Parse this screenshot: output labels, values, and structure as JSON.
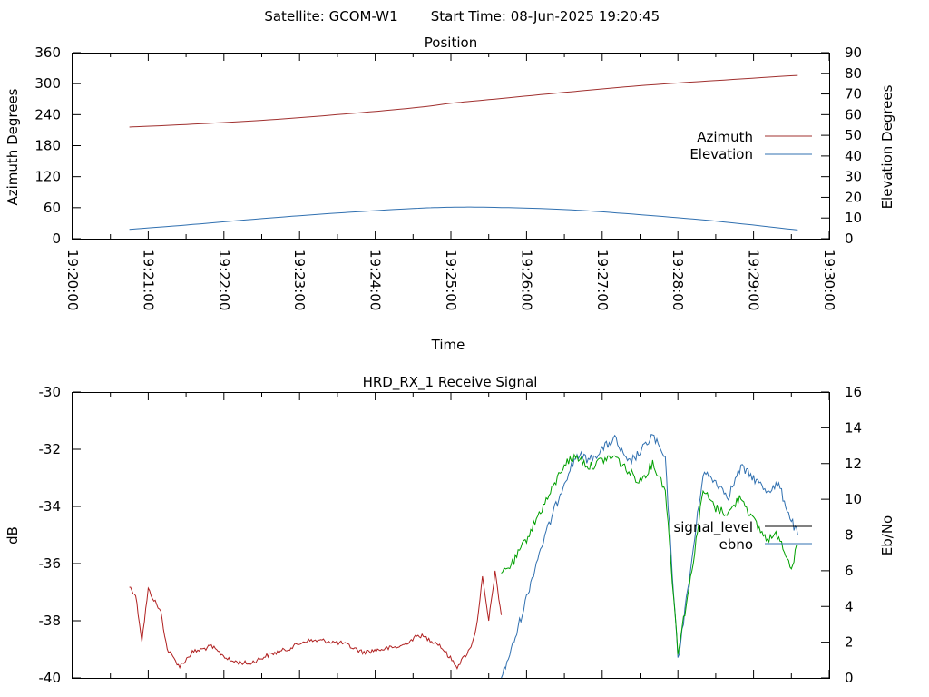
{
  "header": {
    "satellite_text": "Satellite: GCOM-W1",
    "start_time_text": "Start Time: 08-Jun-2025 19:20:45"
  },
  "chart_data": [
    {
      "type": "line",
      "title": "Position",
      "xlabel": "Time",
      "ylabel": "Azimuth Degrees",
      "y2label": "Elevation Degrees",
      "x_ticks": [
        "19:20:00",
        "19:21:00",
        "19:22:00",
        "19:23:00",
        "19:24:00",
        "19:25:00",
        "19:26:00",
        "19:27:00",
        "19:28:00",
        "19:29:00",
        "19:30:00"
      ],
      "x_range": [
        "19:20:00",
        "19:30:00"
      ],
      "ylim": [
        0,
        360
      ],
      "y_ticks": [
        "0",
        "60",
        "120",
        "180",
        "240",
        "300",
        "360"
      ],
      "y2lim": [
        0,
        90
      ],
      "y2_ticks": [
        "0",
        "10",
        "20",
        "30",
        "40",
        "50",
        "60",
        "70",
        "80",
        "90"
      ],
      "legend_position": "right",
      "series": [
        {
          "name": "Azimuth",
          "axis": "left",
          "color": "#a0302f",
          "x": [
            "19:20:45",
            "19:21:30",
            "19:22:30",
            "19:23:30",
            "19:24:30",
            "19:25:00",
            "19:25:30",
            "19:26:30",
            "19:27:30",
            "19:28:30",
            "19:29:35"
          ],
          "values": [
            216,
            221,
            229,
            240,
            253,
            262,
            269,
            283,
            296,
            306,
            316
          ]
        },
        {
          "name": "Elevation",
          "axis": "right",
          "color": "#3070b0",
          "x": [
            "19:20:45",
            "19:21:30",
            "19:22:30",
            "19:23:30",
            "19:24:30",
            "19:25:00",
            "19:25:30",
            "19:26:30",
            "19:27:30",
            "19:28:30",
            "19:29:35"
          ],
          "values": [
            4.5,
            6.6,
            9.7,
            12.4,
            14.6,
            15.2,
            15.2,
            14.1,
            11.6,
            8.5,
            4.2
          ]
        }
      ]
    },
    {
      "type": "line",
      "title": "HRD_RX_1 Receive Signal",
      "ylabel": "dB",
      "y2label": "Eb/No",
      "x_range": [
        "19:20:00",
        "19:30:00"
      ],
      "ylim": [
        -40,
        -30
      ],
      "y_ticks": [
        "-40",
        "-38",
        "-36",
        "-34",
        "-32",
        "-30"
      ],
      "y2lim": [
        0,
        16
      ],
      "y2_ticks": [
        "0",
        "2",
        "4",
        "6",
        "8",
        "10",
        "12",
        "14",
        "16"
      ],
      "legend_position": "right",
      "series": [
        {
          "name": "signal_level",
          "axis": "left",
          "color": "#b02020",
          "x": [
            "19:20:45",
            "19:20:50",
            "19:20:55",
            "19:21:00",
            "19:21:10",
            "19:21:15",
            "19:21:25",
            "19:21:35",
            "19:21:50",
            "19:22:05",
            "19:22:20",
            "19:22:35",
            "19:22:50",
            "19:23:05",
            "19:23:20",
            "19:23:35",
            "19:23:50",
            "19:24:05",
            "19:24:20",
            "19:24:35",
            "19:24:50",
            "19:25:05",
            "19:25:15",
            "19:25:20",
            "19:25:25",
            "19:25:30",
            "19:25:35",
            "19:25:40"
          ],
          "values": [
            -36.8,
            -37.1,
            -38.7,
            -36.9,
            -37.7,
            -39.0,
            -39.6,
            -39.1,
            -38.9,
            -39.4,
            -39.5,
            -39.2,
            -39.0,
            -38.7,
            -38.7,
            -38.8,
            -39.1,
            -39.0,
            -38.9,
            -38.5,
            -38.8,
            -39.6,
            -39.0,
            -38.3,
            -36.5,
            -38.0,
            -36.3,
            -37.8
          ]
        },
        {
          "name": "ebno",
          "axis": "right",
          "color": "#3070b0",
          "x": [
            "19:25:40",
            "19:25:50",
            "19:26:00",
            "19:26:10",
            "19:26:20",
            "19:26:30",
            "19:26:40",
            "19:26:50",
            "19:27:00",
            "19:27:10",
            "19:27:20",
            "19:27:30",
            "19:27:40",
            "19:27:50",
            "19:28:00",
            "19:28:10",
            "19:28:20",
            "19:28:30",
            "19:28:40",
            "19:28:50",
            "19:29:00",
            "19:29:10",
            "19:29:20",
            "19:29:30",
            "19:29:35"
          ],
          "values": [
            0,
            2,
            4.5,
            7,
            9,
            11,
            12.5,
            12.2,
            12.8,
            13.4,
            12.0,
            12.6,
            13.6,
            12.2,
            1.0,
            6.0,
            11.5,
            11.0,
            10.2,
            11.8,
            11.2,
            10.5,
            10.8,
            8.8,
            8.0
          ]
        },
        {
          "name": "",
          "axis": "right",
          "color": "#00a000",
          "x": [
            "19:25:40",
            "19:25:50",
            "19:26:00",
            "19:26:10",
            "19:26:20",
            "19:26:30",
            "19:26:40",
            "19:26:50",
            "19:27:00",
            "19:27:10",
            "19:27:20",
            "19:27:30",
            "19:27:40",
            "19:27:50",
            "19:28:00",
            "19:28:10",
            "19:28:20",
            "19:28:30",
            "19:28:40",
            "19:28:50",
            "19:29:00",
            "19:29:10",
            "19:29:20",
            "19:29:30",
            "19:29:35"
          ],
          "values": [
            5.8,
            6.5,
            7.8,
            9.2,
            10.5,
            12.0,
            12.4,
            11.8,
            12.2,
            12.4,
            11.6,
            11.0,
            12.0,
            10.6,
            1.5,
            5.5,
            10.5,
            9.5,
            9.2,
            10.2,
            8.8,
            7.8,
            8.0,
            6.2,
            7.4
          ]
        }
      ]
    }
  ]
}
